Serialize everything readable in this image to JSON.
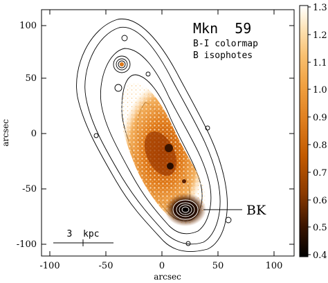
{
  "image": {
    "title": "Mkn  59",
    "subtitle_lines": [
      "B-I colormap",
      "B isophotes"
    ],
    "xlabel": "arcsec",
    "ylabel": "arcsec",
    "x_ticks": [
      "-100",
      "-50",
      "0",
      "50",
      "100"
    ],
    "y_ticks": [
      "100",
      "50",
      "0",
      "-50",
      "-100"
    ],
    "annotation": "BK",
    "scalebar_label": "3  kpc",
    "colorbar": {
      "ticks": [
        "1.3",
        "1.2",
        "1.1",
        "1.0",
        "0.9",
        "0.8",
        "0.7",
        "0.6",
        "0.5",
        "0.4"
      ],
      "range": [
        0.4,
        1.3
      ]
    },
    "colors": {
      "background": "#ffffff",
      "contour": "#000000",
      "colormap_stops": [
        "#000000",
        "#3a1400",
        "#8a3a00",
        "#c25a00",
        "#e08020",
        "#f0a040",
        "#f8c070",
        "#fde0b0",
        "#fff4e0",
        "#ffffff"
      ]
    }
  }
}
